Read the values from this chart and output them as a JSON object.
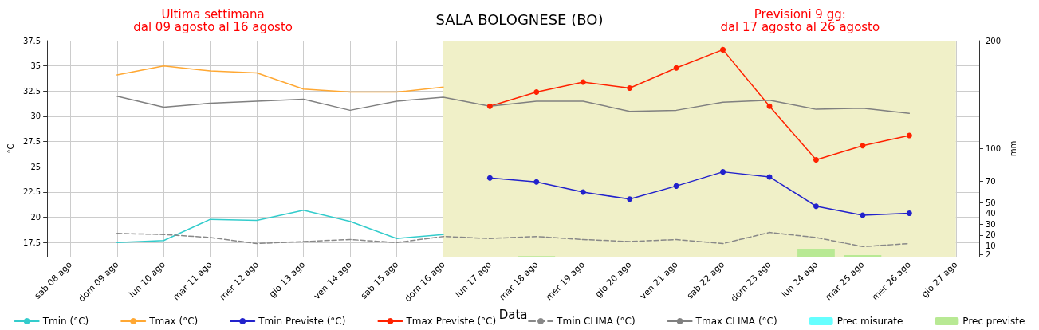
{
  "chart_data": {
    "type": "line",
    "title": "SALA BOLOGNESE (BO)",
    "annotations": [
      "Ultima settimana\ndal 09 agosto al 16 agosto",
      "Previsioni 9 gg:\ndal 17 agosto al 26 agosto"
    ],
    "xlabel": "Data",
    "ylabel": "°C",
    "y2label": "mm",
    "categories": [
      "sab 08 ago",
      "dom 09 ago",
      "lun 10 ago",
      "mar 11 ago",
      "mer 12 ago",
      "gio 13 ago",
      "ven 14 ago",
      "sab 15 ago",
      "dom 16 ago",
      "lun 17 ago",
      "mar 18 ago",
      "mer 19 ago",
      "gio 20 ago",
      "ven 21 ago",
      "sab 22 ago",
      "dom 23 ago",
      "lun 24 ago",
      "mar 25 ago",
      "mer 26 ago",
      "gio 27 ago"
    ],
    "series": [
      {
        "name": "Tmin (°C)",
        "color": "#33cccc",
        "marker": "none",
        "values": [
          null,
          17.5,
          17.7,
          19.8,
          19.7,
          20.7,
          19.6,
          17.9,
          18.3,
          null,
          null,
          null,
          null,
          null,
          null,
          null,
          null,
          null,
          null,
          null
        ]
      },
      {
        "name": "Tmax (°C)",
        "color": "#ffa833",
        "marker": "none",
        "values": [
          null,
          34.1,
          35.0,
          34.5,
          34.3,
          32.7,
          32.4,
          32.4,
          32.9,
          null,
          null,
          null,
          null,
          null,
          null,
          null,
          null,
          null,
          null,
          null
        ]
      },
      {
        "name": "Tmin Previste (°C)",
        "color": "#2222cc",
        "marker": "circle",
        "values": [
          null,
          null,
          null,
          null,
          null,
          null,
          null,
          null,
          null,
          23.9,
          23.5,
          22.5,
          21.8,
          23.1,
          24.5,
          24.0,
          21.1,
          20.2,
          20.4,
          null
        ]
      },
      {
        "name": "Tmax Previste (°C)",
        "color": "#ff2200",
        "marker": "circle",
        "values": [
          null,
          null,
          null,
          null,
          null,
          null,
          null,
          null,
          null,
          31.0,
          32.4,
          33.4,
          32.8,
          34.8,
          36.6,
          31.0,
          25.7,
          27.1,
          28.1,
          null
        ]
      },
      {
        "name": "Tmin CLIMA (°C)",
        "color": "#888888",
        "marker": "none",
        "line_style": "dashed",
        "values": [
          null,
          18.4,
          18.3,
          18.0,
          17.4,
          17.6,
          17.8,
          17.5,
          18.1,
          17.9,
          18.1,
          17.8,
          17.6,
          17.8,
          17.4,
          18.5,
          18.0,
          17.1,
          17.4,
          null
        ]
      },
      {
        "name": "Tmax CLIMA (°C)",
        "color": "#808080",
        "marker": "none",
        "values": [
          null,
          32.0,
          30.9,
          31.3,
          31.5,
          31.7,
          30.6,
          31.5,
          31.9,
          31.0,
          31.5,
          31.5,
          30.5,
          30.6,
          31.4,
          31.6,
          30.7,
          30.8,
          30.3,
          null
        ]
      },
      {
        "name": "Prec misurate",
        "type": "bar",
        "axis": "y2",
        "color": "#66ffff",
        "values": [
          null,
          null,
          null,
          null,
          null,
          null,
          null,
          null,
          null,
          null,
          null,
          null,
          null,
          null,
          null,
          null,
          null,
          null,
          null,
          null
        ]
      },
      {
        "name": "Prec previste",
        "type": "bar",
        "axis": "y2",
        "color": "#b8e994",
        "values": [
          null,
          null,
          null,
          null,
          null,
          null,
          null,
          null,
          null,
          null,
          0.5,
          null,
          null,
          null,
          null,
          null,
          7,
          1.5,
          null,
          null
        ]
      }
    ],
    "ylim": [
      16.1,
      37.5
    ],
    "yticks": [
      17.5,
      20.0,
      22.5,
      25.0,
      27.5,
      30.0,
      32.5,
      35.0,
      37.5
    ],
    "y2lim": [
      0,
      200
    ],
    "y2ticks": [
      2,
      10,
      20,
      30,
      40,
      50,
      70,
      100,
      200
    ],
    "bands": [
      {
        "axis": "x",
        "from": "dom 16 ago",
        "to": "gio 27 ago",
        "color": "#f0f0c8"
      }
    ],
    "grid": true,
    "legend": "bottom"
  }
}
